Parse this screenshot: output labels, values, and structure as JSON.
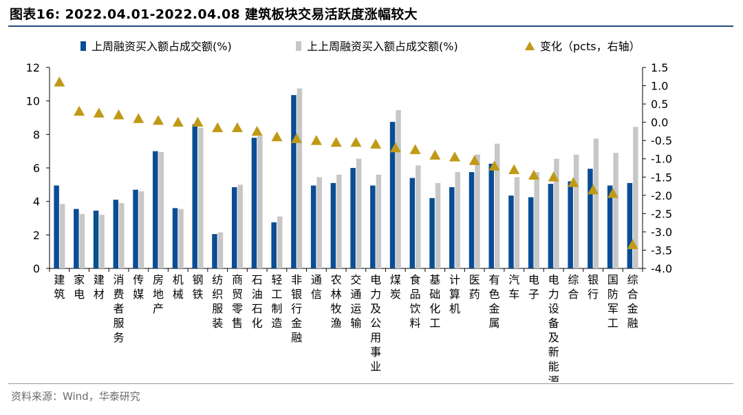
{
  "figure_title": "图表16:  2022.04.01-2022.04.08 建筑板块交易活跃度涨幅较大",
  "source_note": "资料来源：Wind，华泰研究",
  "colors": {
    "current": "#0a4d93",
    "previous": "#c7c7c7",
    "change": "#c09a16",
    "axis": "#000000",
    "title_rule": "#1f4e79"
  },
  "chart_data": {
    "type": "bar",
    "categories": [
      "建筑",
      "家电",
      "建材",
      "消费者服务",
      "传媒",
      "房地产",
      "机械",
      "钢铁",
      "纺织服装",
      "商贸零售",
      "石油石化",
      "轻工制造",
      "非银行金融",
      "通信",
      "农林牧渔",
      "交通运输",
      "电力及公用事业",
      "煤炭",
      "食品饮料",
      "基础化工",
      "计算机",
      "医药",
      "有色金属",
      "汽车",
      "电子",
      "电力设备及新能源",
      "综合",
      "银行",
      "国防军工",
      "综合金融"
    ],
    "series": [
      {
        "name": "上周融资买入额占成交额(%)",
        "kind": "bar",
        "axis": "left",
        "values": [
          4.95,
          3.55,
          3.45,
          4.1,
          4.7,
          7.0,
          3.6,
          8.6,
          2.05,
          4.85,
          7.8,
          2.75,
          10.35,
          4.95,
          5.1,
          6.0,
          4.95,
          8.75,
          5.4,
          4.2,
          4.85,
          5.75,
          6.25,
          4.35,
          4.25,
          5.05,
          5.2,
          5.95,
          4.95,
          5.1
        ]
      },
      {
        "name": "上上周融资买入额占成交额(%)",
        "kind": "bar",
        "axis": "left",
        "values": [
          3.85,
          3.25,
          3.2,
          3.9,
          4.6,
          6.95,
          3.55,
          8.4,
          2.15,
          5.0,
          7.9,
          3.1,
          10.75,
          5.45,
          5.6,
          6.55,
          5.6,
          9.45,
          6.15,
          5.1,
          5.75,
          6.8,
          7.45,
          5.45,
          5.75,
          6.55,
          6.8,
          7.75,
          6.9,
          8.45
        ]
      },
      {
        "name": "变化（pcts，右轴）",
        "kind": "marker",
        "axis": "right",
        "values": [
          1.1,
          0.3,
          0.25,
          0.2,
          0.1,
          0.05,
          0.0,
          0.0,
          -0.15,
          -0.15,
          -0.25,
          -0.4,
          -0.45,
          -0.5,
          -0.55,
          -0.55,
          -0.6,
          -0.7,
          -0.75,
          -0.9,
          -0.95,
          -1.05,
          -1.2,
          -1.3,
          -1.45,
          -1.5,
          -1.65,
          -1.85,
          -1.95,
          -3.35
        ]
      }
    ],
    "y_left": {
      "min": 0,
      "max": 12,
      "ticks": [
        "0",
        "2",
        "4",
        "6",
        "8",
        "10",
        "12"
      ]
    },
    "y_right": {
      "min": -4.0,
      "max": 1.5,
      "ticks": [
        "-4.0",
        "-3.5",
        "-3.0",
        "-2.5",
        "-2.0",
        "-1.5",
        "-1.0",
        "-0.5",
        "0.0",
        "0.5",
        "1.0",
        "1.5"
      ]
    },
    "legend": [
      {
        "label": "上周融资买入额占成交额(%)",
        "swatch": "bar",
        "series": 0
      },
      {
        "label": "上上周融资买入额占成交额(%)",
        "swatch": "bar",
        "series": 1
      },
      {
        "label": "变化（pcts，右轴）",
        "swatch": "triangle",
        "series": 2
      }
    ],
    "legend_position": "top"
  }
}
